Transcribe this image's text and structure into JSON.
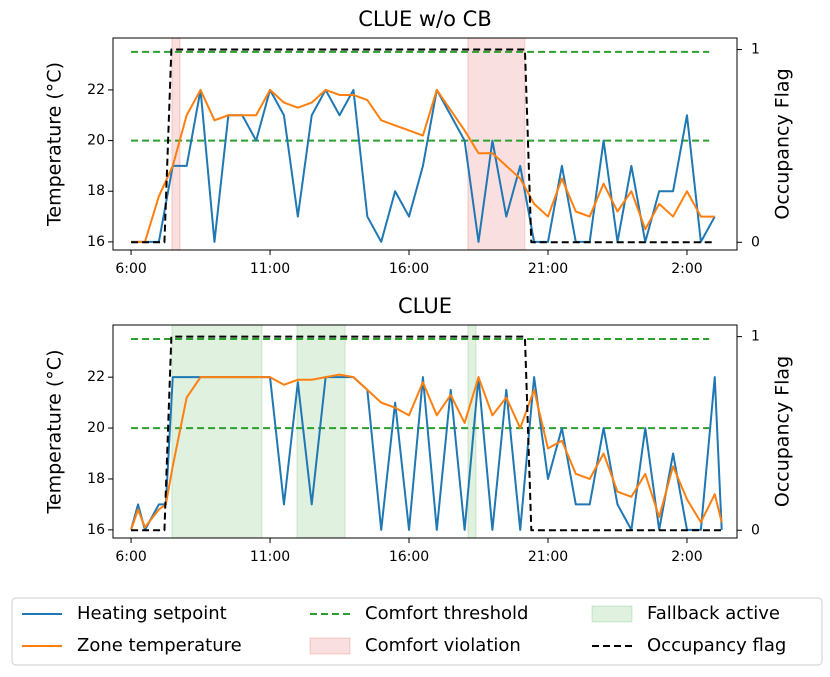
{
  "chart_data": [
    {
      "type": "line",
      "title": "CLUE w/o CB",
      "ylabel": "Temperature (°C)",
      "y2label": "Occupancy Flag",
      "xlim": [
        5.35,
        27.8
      ],
      "xticks": [
        {
          "value": 6,
          "label": "6:00"
        },
        {
          "value": 11,
          "label": "11:00"
        },
        {
          "value": 16,
          "label": "16:00"
        },
        {
          "value": 21,
          "label": "21:00"
        },
        {
          "value": 26,
          "label": "2:00"
        }
      ],
      "ylim": [
        15.68,
        24.05
      ],
      "yticks": [
        16,
        18,
        20,
        22
      ],
      "y2lim": [
        -0.04,
        1.06
      ],
      "y2ticks": [
        0,
        1
      ],
      "x": [
        6,
        6.5,
        7,
        7.5,
        8,
        8.5,
        9,
        9.5,
        10,
        10.5,
        11,
        11.5,
        12,
        12.5,
        13,
        13.5,
        14,
        14.5,
        15,
        15.5,
        16,
        16.5,
        17,
        17.5,
        18,
        18.5,
        19,
        19.5,
        20,
        20.5,
        21,
        21.5,
        22,
        22.5,
        23,
        23.5,
        24,
        24.5,
        25,
        25.5,
        26,
        26.5,
        27
      ],
      "series": [
        {
          "name": "Heating setpoint",
          "color": "#1f77b4",
          "values": [
            16,
            16,
            16,
            19,
            19,
            22,
            16,
            21,
            21,
            20,
            22,
            21,
            17,
            21,
            22,
            21,
            22,
            17,
            16,
            18,
            17,
            19,
            22,
            21,
            20,
            16,
            20,
            17,
            19,
            16,
            16,
            19,
            16,
            16,
            20,
            16,
            19,
            16,
            18,
            18,
            21,
            16,
            17
          ]
        },
        {
          "name": "Zone temperature",
          "color": "#ff7f0e",
          "values": [
            16,
            16,
            17.8,
            19,
            21,
            22,
            20.8,
            21,
            21,
            21,
            22,
            21.5,
            21.3,
            21.5,
            22,
            21.8,
            21.8,
            21.6,
            20.8,
            20.6,
            20.4,
            20.2,
            22,
            21.2,
            20.4,
            19.5,
            19.5,
            19,
            18.5,
            17.5,
            17,
            18.5,
            17.2,
            17,
            18.3,
            17.2,
            18,
            16.5,
            17.5,
            17,
            18,
            17,
            17
          ]
        },
        {
          "name": "Occupancy flag",
          "color": "#000000",
          "axis": "y2",
          "x": [
            6,
            7.2,
            7.45,
            20.17,
            20.4,
            27
          ],
          "values": [
            0,
            0,
            1,
            1,
            0,
            0
          ]
        }
      ],
      "thresholds": {
        "name": "Comfort threshold",
        "color": "#2ca02c",
        "values": [
          23.5,
          20
        ]
      },
      "spans": {
        "name": "Comfort violation",
        "color": "#d62728",
        "ranges": [
          [
            7.47,
            7.76
          ],
          [
            18.12,
            20.17
          ]
        ]
      }
    },
    {
      "type": "line",
      "title": "CLUE",
      "ylabel": "Temperature (°C)",
      "y2label": "Occupancy Flag",
      "xlim": [
        5.35,
        27.8
      ],
      "xticks": [
        {
          "value": 6,
          "label": "6:00"
        },
        {
          "value": 11,
          "label": "11:00"
        },
        {
          "value": 16,
          "label": "16:00"
        },
        {
          "value": 21,
          "label": "21:00"
        },
        {
          "value": 26,
          "label": "2:00"
        }
      ],
      "ylim": [
        15.68,
        24.05
      ],
      "yticks": [
        16,
        18,
        20,
        22
      ],
      "y2lim": [
        -0.04,
        1.06
      ],
      "y2ticks": [
        0,
        1
      ],
      "x": [
        6,
        6.25,
        6.5,
        7,
        7.25,
        7.5,
        8,
        8.5,
        9,
        9.5,
        10,
        10.5,
        11,
        11.5,
        12,
        12.5,
        13,
        13.5,
        14,
        14.5,
        15,
        15.5,
        16,
        16.5,
        17,
        17.5,
        18,
        18.5,
        19,
        19.5,
        20,
        20.5,
        21,
        21.5,
        22,
        22.5,
        23,
        23.5,
        24,
        24.5,
        25,
        25.5,
        26,
        26.5,
        27,
        27.25
      ],
      "series": [
        {
          "color": "#1f77b4",
          "values": [
            16,
            17,
            16,
            17,
            17,
            22,
            22,
            22,
            22,
            22,
            22,
            22,
            22,
            17,
            21.8,
            17,
            22,
            22,
            22,
            21.5,
            16,
            21,
            16,
            22,
            16,
            21.5,
            16,
            22,
            16,
            21.5,
            16,
            22,
            18,
            20,
            17,
            17,
            20,
            17,
            16,
            20,
            16,
            19,
            16,
            16,
            22,
            16
          ]
        },
        {
          "color": "#ff7f0e",
          "values": [
            16,
            16.8,
            16.1,
            16.8,
            17,
            18.5,
            21.2,
            22,
            22,
            22,
            22,
            22,
            22,
            21.7,
            21.9,
            21.9,
            22,
            22.1,
            22,
            21.5,
            21,
            20.8,
            20.5,
            21.8,
            20.5,
            21.3,
            20.2,
            22,
            20.5,
            21.2,
            20,
            21.5,
            19.2,
            19.5,
            18.2,
            18,
            19,
            17.5,
            17.3,
            18.2,
            16.5,
            18.5,
            17.2,
            16.3,
            17.4,
            16.3
          ]
        },
        {
          "color": "#000000",
          "axis": "y2",
          "x": [
            6,
            7.2,
            7.45,
            20.17,
            20.4,
            27.25
          ],
          "values": [
            0,
            0,
            1,
            1,
            0,
            0
          ]
        }
      ],
      "thresholds": {
        "color": "#2ca02c",
        "values": [
          23.5,
          20
        ]
      },
      "spans": {
        "name": "Fallback active",
        "color": "#2ca02c",
        "ranges": [
          [
            7.47,
            10.71
          ],
          [
            11.97,
            13.7
          ],
          [
            18.12,
            18.41
          ]
        ]
      }
    }
  ]
}
